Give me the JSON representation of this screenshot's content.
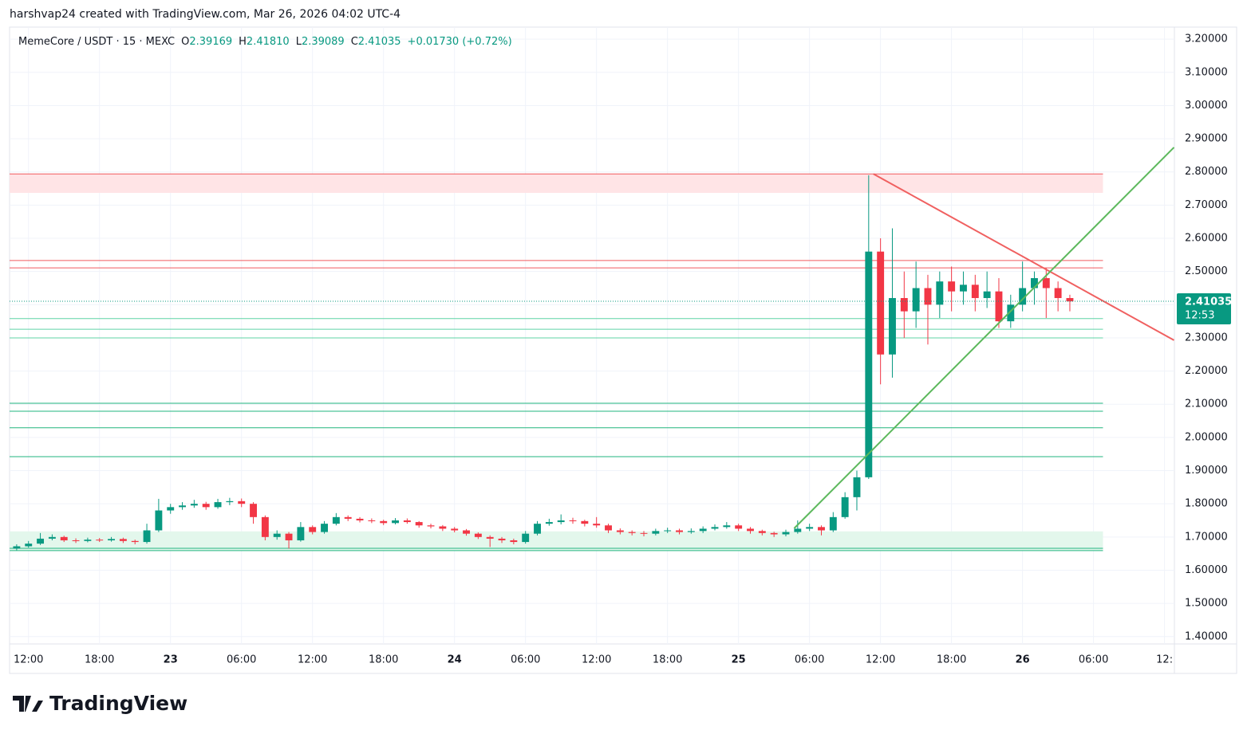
{
  "attribution": "harshvap24 created with TradingView.com, Mar 26, 2026 04:02 UTC-4",
  "brand": "TradingView",
  "chart_data": {
    "type": "candlestick",
    "symbol": "MemeCore / USDT · 15 · MEXC",
    "ohlc_header": [
      {
        "label": "O",
        "value": "2.39169"
      },
      {
        "label": "H",
        "value": "2.41810"
      },
      {
        "label": "L",
        "value": "2.39089"
      },
      {
        "label": "C",
        "value": "2.41035"
      }
    ],
    "change": "+0.01730 (+0.72%)",
    "last_price": 2.41035,
    "countdown": "12:53",
    "up_color": "#089981",
    "down_color": "#f23645",
    "x": [
      11,
      12,
      13,
      14,
      15,
      16,
      17,
      18,
      19,
      20,
      21,
      22,
      23,
      24,
      25,
      26,
      27,
      28,
      29,
      30,
      31,
      32,
      33,
      34,
      35,
      36,
      37,
      38,
      39,
      40,
      41,
      42,
      43,
      44,
      45,
      46,
      47,
      48,
      49,
      50,
      51,
      52,
      53,
      54,
      55,
      56,
      57,
      58,
      59,
      60,
      61,
      62,
      63,
      64,
      65,
      66,
      67,
      68,
      69,
      70,
      71,
      72,
      73,
      74,
      75,
      76,
      77,
      78,
      79,
      80,
      81,
      82,
      83,
      84,
      85,
      86,
      87,
      88,
      89,
      90,
      91,
      92,
      93,
      94,
      95,
      96,
      97,
      98,
      99,
      100
    ],
    "open": [
      1.665,
      1.672,
      1.68,
      1.695,
      1.7,
      1.69,
      1.688,
      1.692,
      1.69,
      1.694,
      1.688,
      1.685,
      1.72,
      1.78,
      1.79,
      1.795,
      1.8,
      1.79,
      1.805,
      1.808,
      1.8,
      1.76,
      1.7,
      1.71,
      1.69,
      1.73,
      1.715,
      1.74,
      1.76,
      1.755,
      1.75,
      1.748,
      1.742,
      1.75,
      1.745,
      1.735,
      1.732,
      1.725,
      1.72,
      1.71,
      1.7,
      1.695,
      1.69,
      1.685,
      1.71,
      1.74,
      1.745,
      1.75,
      1.748,
      1.74,
      1.735,
      1.72,
      1.715,
      1.712,
      1.71,
      1.718,
      1.72,
      1.715,
      1.718,
      1.725,
      1.73,
      1.735,
      1.725,
      1.718,
      1.712,
      1.708,
      1.715,
      1.725,
      1.73,
      1.72,
      1.76,
      1.82,
      1.88,
      2.56,
      2.25,
      2.42,
      2.38,
      2.45,
      2.4,
      2.47,
      2.44,
      2.46,
      2.42,
      2.44,
      2.35,
      2.4,
      2.45,
      2.48,
      2.45,
      2.42
    ],
    "high": [
      1.678,
      1.688,
      1.712,
      1.708,
      1.704,
      1.696,
      1.698,
      1.697,
      1.7,
      1.698,
      1.692,
      1.74,
      1.815,
      1.8,
      1.805,
      1.812,
      1.806,
      1.815,
      1.818,
      1.816,
      1.805,
      1.765,
      1.72,
      1.715,
      1.745,
      1.735,
      1.748,
      1.772,
      1.765,
      1.76,
      1.756,
      1.752,
      1.757,
      1.756,
      1.748,
      1.74,
      1.736,
      1.73,
      1.724,
      1.714,
      1.705,
      1.7,
      1.695,
      1.718,
      1.748,
      1.755,
      1.768,
      1.758,
      1.752,
      1.76,
      1.74,
      1.726,
      1.72,
      1.718,
      1.725,
      1.728,
      1.725,
      1.726,
      1.732,
      1.738,
      1.745,
      1.74,
      1.73,
      1.722,
      1.716,
      1.722,
      1.75,
      1.74,
      1.735,
      1.775,
      1.835,
      1.9,
      2.79,
      2.6,
      2.63,
      2.5,
      2.53,
      2.49,
      2.5,
      2.515,
      2.5,
      2.49,
      2.5,
      2.48,
      2.43,
      2.53,
      2.5,
      2.51,
      2.47,
      2.43
    ],
    "low": [
      1.66,
      1.668,
      1.676,
      1.69,
      1.685,
      1.682,
      1.684,
      1.685,
      1.686,
      1.682,
      1.678,
      1.68,
      1.715,
      1.77,
      1.782,
      1.788,
      1.782,
      1.785,
      1.796,
      1.79,
      1.74,
      1.69,
      1.692,
      1.665,
      1.686,
      1.708,
      1.71,
      1.735,
      1.748,
      1.744,
      1.742,
      1.736,
      1.738,
      1.74,
      1.728,
      1.726,
      1.718,
      1.714,
      1.704,
      1.694,
      1.67,
      1.682,
      1.678,
      1.68,
      1.705,
      1.734,
      1.738,
      1.74,
      1.732,
      1.728,
      1.712,
      1.708,
      1.705,
      1.702,
      1.705,
      1.712,
      1.708,
      1.71,
      1.712,
      1.72,
      1.725,
      1.718,
      1.71,
      1.705,
      1.7,
      1.702,
      1.71,
      1.718,
      1.705,
      1.715,
      1.755,
      1.78,
      1.875,
      2.16,
      2.18,
      2.3,
      2.33,
      2.28,
      2.36,
      2.38,
      2.4,
      2.38,
      2.39,
      2.33,
      2.33,
      2.38,
      2.4,
      2.36,
      2.38,
      2.38
    ],
    "close": [
      1.672,
      1.68,
      1.695,
      1.7,
      1.69,
      1.688,
      1.692,
      1.69,
      1.694,
      1.688,
      1.685,
      1.72,
      1.78,
      1.79,
      1.795,
      1.8,
      1.79,
      1.805,
      1.808,
      1.8,
      1.76,
      1.7,
      1.71,
      1.69,
      1.73,
      1.715,
      1.74,
      1.76,
      1.755,
      1.75,
      1.748,
      1.742,
      1.75,
      1.745,
      1.735,
      1.732,
      1.725,
      1.72,
      1.71,
      1.7,
      1.695,
      1.69,
      1.685,
      1.71,
      1.74,
      1.745,
      1.75,
      1.748,
      1.74,
      1.735,
      1.72,
      1.715,
      1.712,
      1.71,
      1.718,
      1.72,
      1.715,
      1.718,
      1.725,
      1.73,
      1.735,
      1.725,
      1.718,
      1.712,
      1.708,
      1.715,
      1.725,
      1.73,
      1.72,
      1.76,
      1.82,
      1.88,
      2.56,
      2.25,
      2.42,
      2.38,
      2.45,
      2.4,
      2.47,
      2.44,
      2.46,
      2.42,
      2.44,
      2.35,
      2.4,
      2.45,
      2.48,
      2.45,
      2.42,
      2.41
    ],
    "xlim": [
      10.4,
      108.7
    ],
    "ylim": [
      1.385,
      3.234
    ],
    "xticks": [
      {
        "value": 12,
        "label": "12:00"
      },
      {
        "value": 18,
        "label": "18:00"
      },
      {
        "value": 24,
        "label": "23"
      },
      {
        "value": 30,
        "label": "06:00"
      },
      {
        "value": 36,
        "label": "12:00"
      },
      {
        "value": 42,
        "label": "18:00"
      },
      {
        "value": 48,
        "label": "24"
      },
      {
        "value": 54,
        "label": "06:00"
      },
      {
        "value": 60,
        "label": "12:00"
      },
      {
        "value": 66,
        "label": "18:00"
      },
      {
        "value": 72,
        "label": "25"
      },
      {
        "value": 78,
        "label": "06:00"
      },
      {
        "value": 84,
        "label": "12:00"
      },
      {
        "value": 90,
        "label": "18:00"
      },
      {
        "value": 96,
        "label": "26"
      },
      {
        "value": 102,
        "label": "06:00"
      },
      {
        "value": 108,
        "label": "12:"
      }
    ],
    "yticks": [
      {
        "value": 3.2,
        "label": "3.20000"
      },
      {
        "value": 3.1,
        "label": "3.10000"
      },
      {
        "value": 3.0,
        "label": "3.00000"
      },
      {
        "value": 2.9,
        "label": "2.90000"
      },
      {
        "value": 2.8,
        "label": "2.80000"
      },
      {
        "value": 2.7,
        "label": "2.70000"
      },
      {
        "value": 2.6,
        "label": "2.60000"
      },
      {
        "value": 2.5,
        "label": "2.50000"
      },
      {
        "value": 2.4,
        "label": "2.40000"
      },
      {
        "value": 2.3,
        "label": "2.30000"
      },
      {
        "value": 2.2,
        "label": "2.20000"
      },
      {
        "value": 2.1,
        "label": "2.10000"
      },
      {
        "value": 2.0,
        "label": "2.00000"
      },
      {
        "value": 1.9,
        "label": "1.90000"
      },
      {
        "value": 1.8,
        "label": "1.80000"
      },
      {
        "value": 1.7,
        "label": "1.70000"
      },
      {
        "value": 1.6,
        "label": "1.60000"
      },
      {
        "value": 1.5,
        "label": "1.50000"
      },
      {
        "value": 1.4,
        "label": "1.40000"
      }
    ],
    "grid": true,
    "zones": [
      {
        "from": 10.4,
        "to": 102.8,
        "low": 2.737,
        "high": 2.794,
        "color": "#ffe4e6"
      },
      {
        "from": 10.4,
        "to": 102.8,
        "low": 1.659,
        "high": 1.717,
        "color": "#e3f7ec"
      }
    ],
    "hlines": [
      {
        "value": 2.794,
        "color": "#f05a5f"
      },
      {
        "value": 2.533,
        "color": "#f05a5f"
      },
      {
        "value": 2.511,
        "color": "#f05a5f"
      },
      {
        "value": 2.358,
        "color": "#5fd3a6"
      },
      {
        "value": 2.326,
        "color": "#5fd3a6"
      },
      {
        "value": 2.3,
        "color": "#5fd3a6"
      },
      {
        "value": 2.103,
        "color": "#22b57f"
      },
      {
        "value": 2.079,
        "color": "#22b57f"
      },
      {
        "value": 2.029,
        "color": "#22b57f"
      },
      {
        "value": 1.942,
        "color": "#22b57f"
      },
      {
        "value": 1.666,
        "color": "#22b57f"
      },
      {
        "value": 1.659,
        "color": "#22b57f"
      }
    ],
    "trendlines": [
      {
        "x": [
          83.4,
          108.8
        ],
        "y": [
          2.794,
          2.293
        ],
        "color": "#f06060"
      },
      {
        "x": [
          76.7,
          108.8
        ],
        "y": [
          1.726,
          2.874
        ],
        "color": "#5cb85c"
      }
    ]
  }
}
